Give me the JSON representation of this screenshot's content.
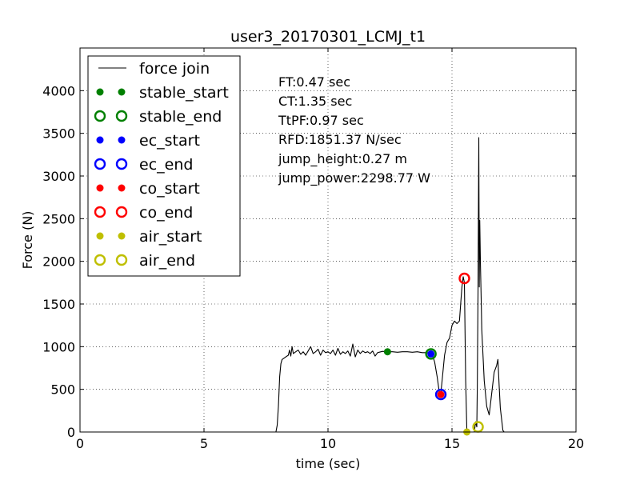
{
  "chart_data": {
    "type": "line",
    "title": "user3_20170301_LCMJ_t1",
    "xlabel": "time (sec)",
    "ylabel": "Force (N)",
    "xlim": [
      0,
      20
    ],
    "ylim": [
      0,
      4500
    ],
    "xticks": [
      0,
      5,
      10,
      15,
      20
    ],
    "yticks": [
      0,
      500,
      1000,
      1500,
      2000,
      2500,
      3000,
      3500,
      4000
    ],
    "grid": true,
    "legend_position": "top-left",
    "series": [
      {
        "name": "force join",
        "style": "line",
        "color": "#000000",
        "x": [
          0,
          7.9,
          7.95,
          8.0,
          8.05,
          8.1,
          8.15,
          8.2,
          8.3,
          8.4,
          8.45,
          8.5,
          8.55,
          8.6,
          8.7,
          8.8,
          8.9,
          9.0,
          9.1,
          9.2,
          9.3,
          9.4,
          9.5,
          9.6,
          9.7,
          9.8,
          9.9,
          10.0,
          10.1,
          10.2,
          10.3,
          10.4,
          10.5,
          10.6,
          10.7,
          10.8,
          10.9,
          11.0,
          11.1,
          11.2,
          11.3,
          11.4,
          11.5,
          11.6,
          11.7,
          11.8,
          11.9,
          12.0,
          12.2,
          12.4,
          12.6,
          12.8,
          13.0,
          13.2,
          13.4,
          13.6,
          13.8,
          14.0,
          14.1,
          14.2,
          14.3,
          14.4,
          14.5,
          14.55,
          14.6,
          14.7,
          14.8,
          14.9,
          15.0,
          15.1,
          15.2,
          15.3,
          15.4,
          15.45,
          15.5,
          15.55,
          15.6,
          15.65,
          15.7,
          15.8,
          15.9,
          15.95,
          16.0,
          16.02,
          16.05,
          16.08,
          16.1,
          16.12,
          16.15,
          16.18,
          16.2,
          16.3,
          16.4,
          16.5,
          16.6,
          16.7,
          16.8,
          16.85,
          16.9,
          16.95,
          17.0,
          17.05,
          17.1,
          18.0,
          20.0
        ],
        "y": [
          0,
          0,
          80,
          300,
          650,
          800,
          850,
          860,
          880,
          900,
          960,
          890,
          1000,
          920,
          940,
          960,
          910,
          940,
          900,
          950,
          1000,
          920,
          940,
          970,
          900,
          960,
          930,
          940,
          920,
          960,
          900,
          980,
          910,
          940,
          920,
          950,
          890,
          1030,
          880,
          960,
          920,
          950,
          930,
          940,
          920,
          950,
          890,
          930,
          945,
          940,
          940,
          935,
          940,
          940,
          935,
          940,
          930,
          930,
          920,
          910,
          820,
          650,
          440,
          450,
          600,
          900,
          1050,
          1100,
          1250,
          1300,
          1270,
          1300,
          1700,
          1820,
          1750,
          600,
          0,
          0,
          0,
          0,
          0,
          120,
          60,
          500,
          1600,
          3450,
          1700,
          2480,
          1950,
          1500,
          1200,
          600,
          300,
          200,
          450,
          700,
          780,
          850,
          550,
          280,
          150,
          20,
          0,
          0,
          0
        ]
      },
      {
        "name": "stable_start",
        "style": "filled",
        "color": "#008000",
        "x": [
          12.4
        ],
        "y": [
          940
        ]
      },
      {
        "name": "stable_end",
        "style": "open",
        "color": "#008000",
        "x": [
          14.15
        ],
        "y": [
          915
        ]
      },
      {
        "name": "ec_start",
        "style": "filled",
        "color": "#0000ff",
        "x": [
          14.15
        ],
        "y": [
          915
        ]
      },
      {
        "name": "ec_end",
        "style": "open",
        "color": "#0000ff",
        "x": [
          14.55
        ],
        "y": [
          440
        ]
      },
      {
        "name": "co_start",
        "style": "filled",
        "color": "#ff0000",
        "x": [
          14.55
        ],
        "y": [
          440
        ]
      },
      {
        "name": "co_end",
        "style": "open",
        "color": "#ff0000",
        "x": [
          15.5
        ],
        "y": [
          1800
        ]
      },
      {
        "name": "air_start",
        "style": "filled",
        "color": "#bfbf00",
        "x": [
          15.6
        ],
        "y": [
          0
        ]
      },
      {
        "name": "air_end",
        "style": "open",
        "color": "#bfbf00",
        "x": [
          16.05
        ],
        "y": [
          60
        ]
      }
    ],
    "annotations": [
      "FT:0.47 sec",
      "CT:1.35 sec",
      "TtPF:0.97 sec",
      "RFD:1851.37 N/sec",
      "jump_height:0.27 m",
      "jump_power:2298.77 W"
    ]
  }
}
